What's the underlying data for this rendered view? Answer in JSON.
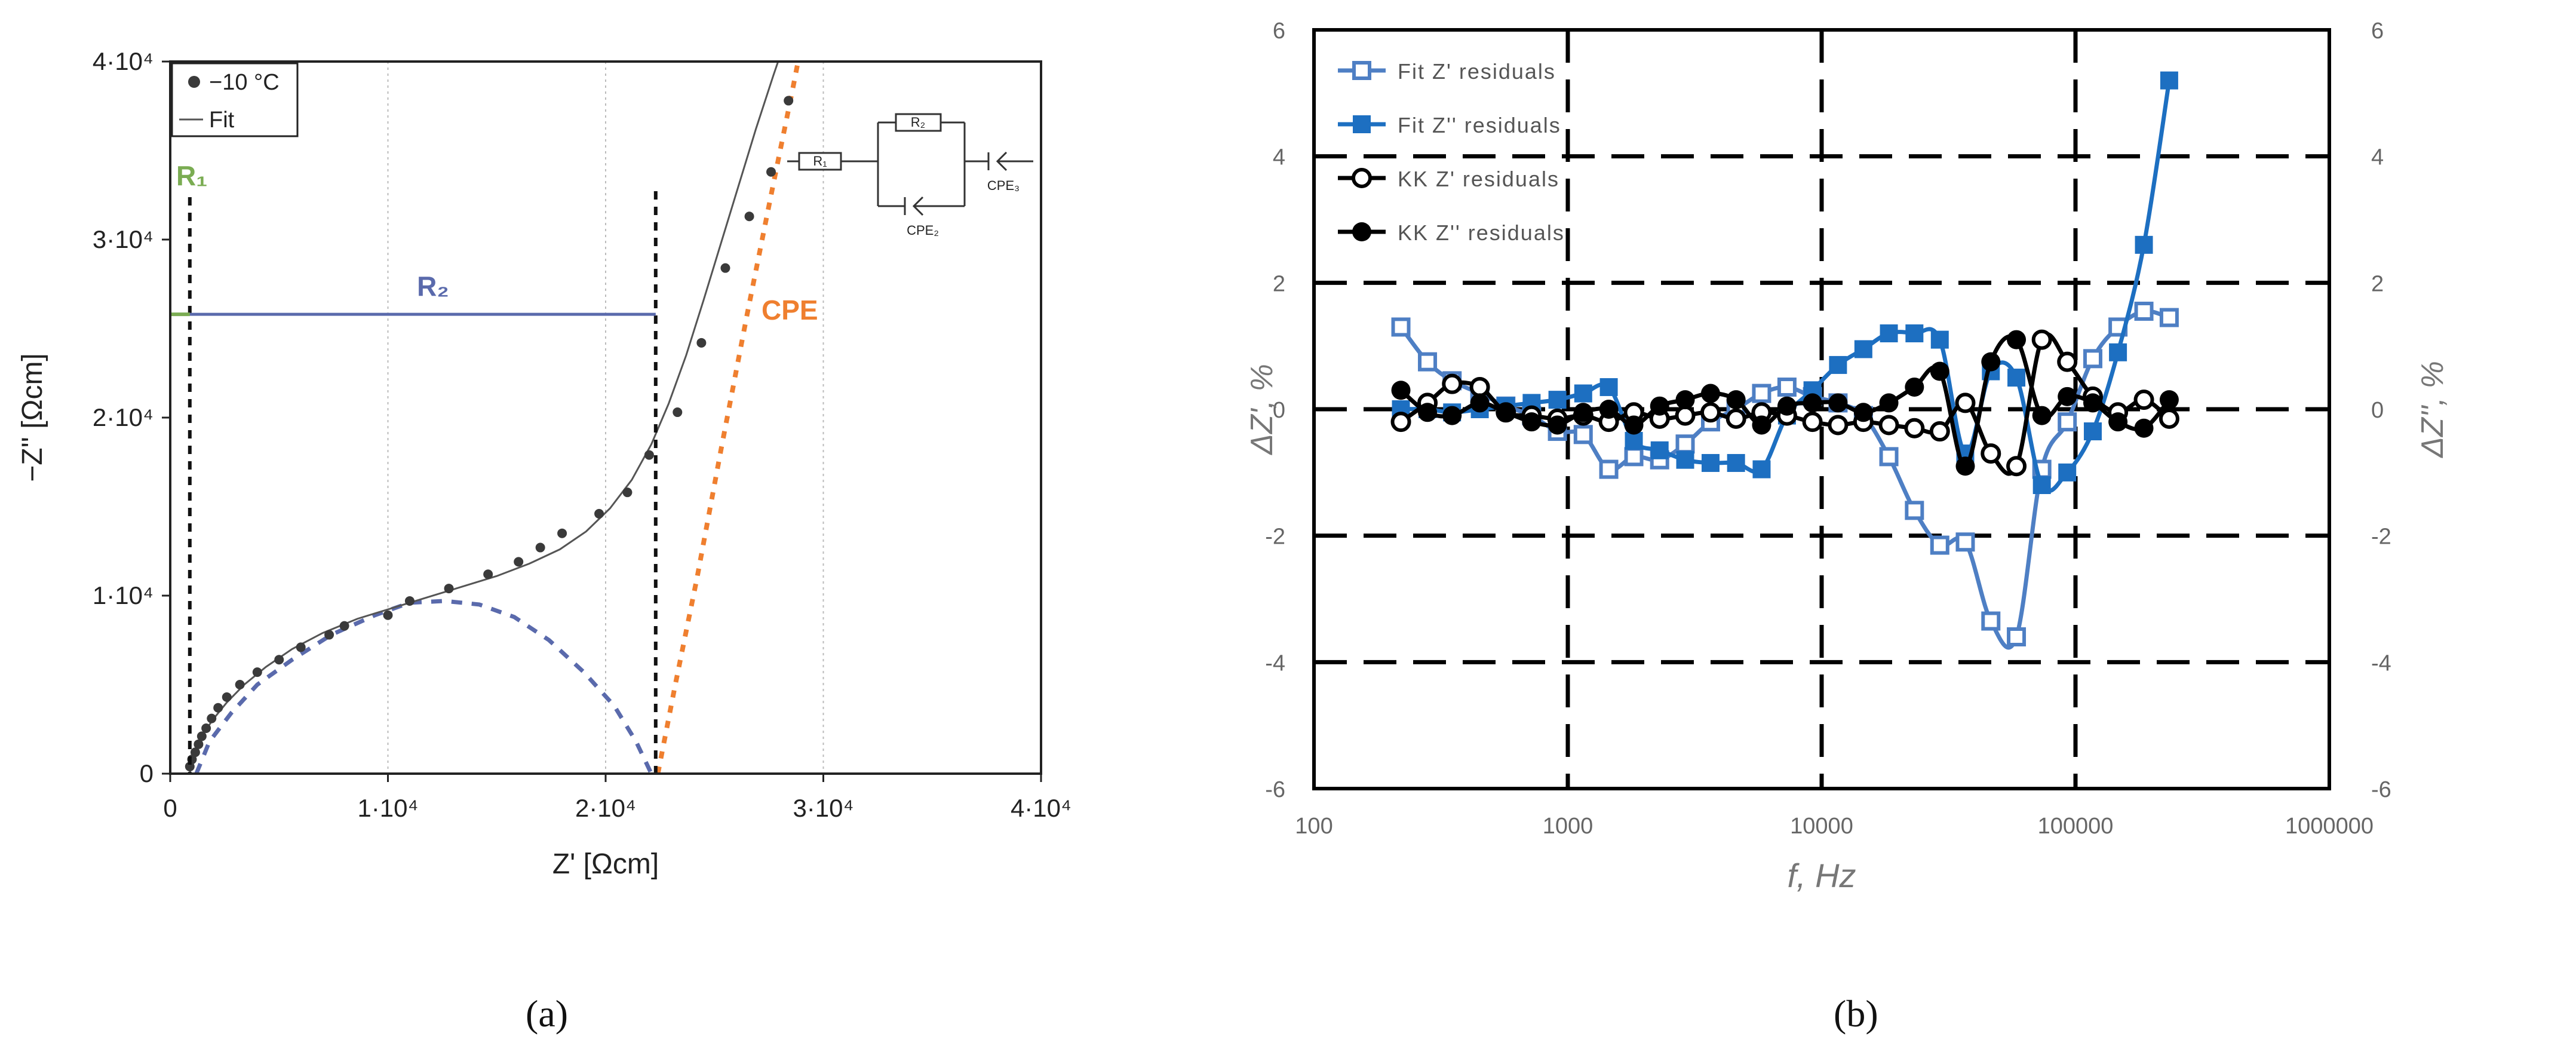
{
  "panel_labels": [
    "(a)",
    "(b)"
  ],
  "colors": {
    "data_points": "#3a3a3a",
    "fit_line": "#555555",
    "r1": "#7aac52",
    "r2": "#5a6aac",
    "cpe": "#ef7f2f",
    "fit_z_real": "#4e7fc4",
    "fit_z_imag": "#1d6fc1",
    "kk": "#000000"
  },
  "chart_data": [
    {
      "type": "scatter",
      "title": "",
      "xlabel": "Z' [Ωcm]",
      "ylabel": "−Z'' [Ωcm]",
      "xlim": [
        0,
        40000
      ],
      "ylim": [
        0,
        40000
      ],
      "x_ticks": [
        0,
        10000,
        20000,
        30000,
        40000
      ],
      "x_tick_labels": [
        "0",
        "1·10⁴",
        "2·10⁴",
        "3·10⁴",
        "4·10⁴"
      ],
      "y_ticks": [
        0,
        10000,
        20000,
        30000,
        40000
      ],
      "y_tick_labels": [
        "0",
        "1·10⁴",
        "2·10⁴",
        "3·10⁴",
        "4·10⁴"
      ],
      "grid": "vertical dotted",
      "legend_position": "top-left",
      "legend": [
        "−10 °C",
        "Fit"
      ],
      "annotations": {
        "r1_label": "R₁",
        "r2_label": "R₂",
        "cpe_label": "CPE",
        "circuit_labels": [
          "R₁",
          "R₂",
          "CPE₂",
          "CPE₃"
        ]
      },
      "r1_value": 900,
      "r1_plus_r2": 22300,
      "r2_marker_height": 25800,
      "series": [
        {
          "name": "−10 °C",
          "kind": "markers",
          "points": [
            [
              900,
              400
            ],
            [
              1000,
              800
            ],
            [
              1150,
              1200
            ],
            [
              1300,
              1650
            ],
            [
              1450,
              2100
            ],
            [
              1650,
              2550
            ],
            [
              1900,
              3100
            ],
            [
              2200,
              3700
            ],
            [
              2600,
              4300
            ],
            [
              3200,
              5000
            ],
            [
              4000,
              5700
            ],
            [
              5000,
              6400
            ],
            [
              6000,
              7100
            ],
            [
              7300,
              7800
            ],
            [
              8000,
              8300
            ],
            [
              10000,
              8900
            ],
            [
              11000,
              9700
            ],
            [
              12800,
              10400
            ],
            [
              14600,
              11200
            ],
            [
              16000,
              11900
            ],
            [
              17000,
              12700
            ],
            [
              18000,
              13500
            ],
            [
              19700,
              14600
            ],
            [
              21000,
              15800
            ],
            [
              22000,
              17900
            ],
            [
              23300,
              20300
            ],
            [
              24400,
              24200
            ],
            [
              25500,
              28400
            ],
            [
              26600,
              31300
            ],
            [
              27600,
              33800
            ],
            [
              28400,
              37800
            ]
          ]
        },
        {
          "name": "Fit",
          "kind": "line",
          "points": [
            [
              900,
              0
            ],
            [
              950,
              500
            ],
            [
              1100,
              1100
            ],
            [
              1300,
              1700
            ],
            [
              1600,
              2400
            ],
            [
              2000,
              3100
            ],
            [
              2600,
              4000
            ],
            [
              3400,
              5000
            ],
            [
              4400,
              6000
            ],
            [
              5600,
              7000
            ],
            [
              7000,
              7900
            ],
            [
              8600,
              8700
            ],
            [
              10200,
              9300
            ],
            [
              11800,
              9900
            ],
            [
              13400,
              10500
            ],
            [
              15000,
              11100
            ],
            [
              16500,
              11800
            ],
            [
              17900,
              12600
            ],
            [
              19100,
              13600
            ],
            [
              20200,
              14900
            ],
            [
              21200,
              16500
            ],
            [
              22100,
              18500
            ],
            [
              22900,
              20800
            ],
            [
              23700,
              23500
            ],
            [
              24500,
              26600
            ],
            [
              25300,
              29800
            ],
            [
              26100,
              33000
            ],
            [
              26900,
              36200
            ],
            [
              27700,
              39200
            ],
            [
              28200,
              41000
            ]
          ]
        },
        {
          "name": "R₂ arc",
          "kind": "dashed",
          "points": [
            [
              1200,
              0
            ],
            [
              1800,
              1800
            ],
            [
              2800,
              3400
            ],
            [
              4000,
              5000
            ],
            [
              5600,
              6400
            ],
            [
              7400,
              7800
            ],
            [
              9400,
              8900
            ],
            [
              11000,
              9600
            ],
            [
              12600,
              9700
            ],
            [
              14200,
              9500
            ],
            [
              15800,
              8800
            ],
            [
              17400,
              7500
            ],
            [
              19000,
              5700
            ],
            [
              20400,
              3800
            ],
            [
              21400,
              1800
            ],
            [
              22100,
              0
            ]
          ]
        },
        {
          "name": "CPE",
          "kind": "dotted",
          "points": [
            [
              22400,
              0
            ],
            [
              23200,
              5000
            ],
            [
              24200,
              11000
            ],
            [
              25300,
              18200
            ],
            [
              26500,
              25800
            ],
            [
              27600,
              32500
            ],
            [
              28600,
              38500
            ],
            [
              29000,
              41000
            ]
          ]
        }
      ]
    },
    {
      "type": "line",
      "title": "",
      "xlabel": "f, Hz",
      "ylabel": "ΔZ', %",
      "y2label": "ΔZ'', %",
      "x_scale": "log",
      "xlim": [
        100,
        1000000
      ],
      "x_tick_labels": [
        "100",
        "1000",
        "10000",
        "100000",
        "1000000"
      ],
      "ylim": [
        -6,
        6
      ],
      "y_tick_labels": [
        "-6",
        "-4",
        "-2",
        "0",
        "2",
        "4",
        "6"
      ],
      "grid": "dashed",
      "legend_position": "top-left",
      "series": [
        {
          "name": "Fit Z' residuals",
          "marker": "open-square",
          "x": [
            220,
            280,
            350,
            450,
            570,
            720,
            910,
            1150,
            1450,
            1820,
            2300,
            2900,
            3650,
            4600,
            5800,
            7300,
            9200,
            11600,
            14600,
            18400,
            23200,
            29200,
            36800,
            46400,
            58500,
            73700,
            92800,
            117000,
            147000,
            186000,
            234000
          ],
          "values": [
            1.3,
            0.75,
            0.45,
            0.25,
            0.05,
            -0.1,
            -0.35,
            -0.4,
            -0.95,
            -0.75,
            -0.8,
            -0.55,
            -0.2,
            0.0,
            0.25,
            0.35,
            0.2,
            0.1,
            -0.1,
            -0.75,
            -1.6,
            -2.15,
            -2.1,
            -3.35,
            -3.6,
            -0.95,
            -0.2,
            0.8,
            1.3,
            1.55,
            1.45
          ]
        },
        {
          "name": "Fit Z'' residuals",
          "marker": "filled-square",
          "x": [
            220,
            280,
            350,
            450,
            570,
            720,
            910,
            1150,
            1450,
            1820,
            2300,
            2900,
            3650,
            4600,
            5800,
            7300,
            9200,
            11600,
            14600,
            18400,
            23200,
            29200,
            36800,
            46400,
            58500,
            73700,
            92800,
            117000,
            147000,
            186000,
            234000
          ],
          "values": [
            0.0,
            0.0,
            -0.05,
            0.0,
            0.05,
            0.1,
            0.15,
            0.25,
            0.35,
            -0.5,
            -0.65,
            -0.8,
            -0.85,
            -0.85,
            -0.95,
            -0.1,
            0.3,
            0.7,
            0.95,
            1.2,
            1.2,
            1.1,
            -0.7,
            0.6,
            0.5,
            -1.2,
            -1.0,
            -0.35,
            0.9,
            2.6,
            5.2
          ]
        },
        {
          "name": "KK Z' residuals",
          "marker": "open-circle",
          "x": [
            220,
            280,
            350,
            450,
            570,
            720,
            910,
            1150,
            1450,
            1820,
            2300,
            2900,
            3650,
            4600,
            5800,
            7300,
            9200,
            11600,
            14600,
            18400,
            23200,
            29200,
            36800,
            46400,
            58500,
            73700,
            92800,
            117000,
            147000,
            186000,
            234000
          ],
          "values": [
            -0.2,
            0.1,
            0.4,
            0.35,
            -0.05,
            -0.1,
            -0.15,
            -0.1,
            -0.2,
            -0.05,
            -0.15,
            -0.1,
            -0.05,
            -0.15,
            -0.05,
            -0.1,
            -0.2,
            -0.25,
            -0.2,
            -0.25,
            -0.3,
            -0.35,
            0.1,
            -0.7,
            -0.9,
            1.1,
            0.75,
            0.2,
            -0.05,
            0.15,
            -0.15
          ]
        },
        {
          "name": "KK Z'' residuals",
          "marker": "filled-circle",
          "x": [
            220,
            280,
            350,
            450,
            570,
            720,
            910,
            1150,
            1450,
            1820,
            2300,
            2900,
            3650,
            4600,
            5800,
            7300,
            9200,
            11600,
            14600,
            18400,
            23200,
            29200,
            36800,
            46400,
            58500,
            73700,
            92800,
            117000,
            147000,
            186000,
            234000
          ],
          "values": [
            0.3,
            -0.05,
            -0.1,
            0.1,
            -0.05,
            -0.2,
            -0.25,
            -0.05,
            0.0,
            -0.25,
            0.05,
            0.15,
            0.25,
            0.15,
            -0.25,
            0.05,
            0.1,
            0.1,
            -0.05,
            0.1,
            0.35,
            0.6,
            -0.9,
            0.75,
            1.1,
            -0.1,
            0.2,
            0.1,
            -0.2,
            -0.3,
            0.15
          ]
        }
      ]
    }
  ]
}
